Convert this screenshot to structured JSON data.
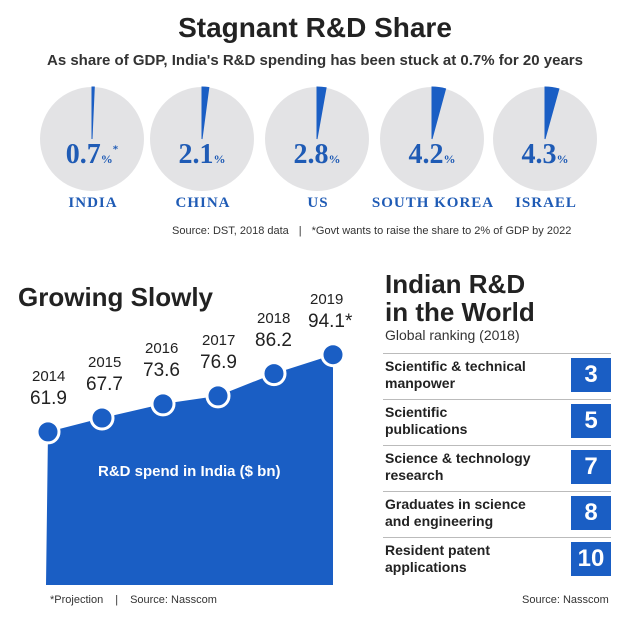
{
  "title": "Stagnant R&D Share",
  "subtitle": "As share of GDP, India's R&D spending has been stuck at 0.7% for 20 years",
  "pies": [
    {
      "country": "INDIA",
      "value": "0.7",
      "share": 0.7,
      "unit": "%",
      "asterisk": "*"
    },
    {
      "country": "CHINA",
      "value": "2.1",
      "share": 2.1,
      "unit": "%",
      "asterisk": ""
    },
    {
      "country": "US",
      "value": "2.8",
      "share": 2.8,
      "unit": "%",
      "asterisk": ""
    },
    {
      "country": "SOUTH KOREA",
      "value": "4.2",
      "share": 4.2,
      "unit": "%",
      "asterisk": ""
    },
    {
      "country": "ISRAEL",
      "value": "4.3",
      "share": 4.3,
      "unit": "%",
      "asterisk": ""
    }
  ],
  "source_top": {
    "left": "Source: DST, 2018 data",
    "separator": "|",
    "right": "*Govt wants to raise the share to 2% of GDP by 2022"
  },
  "growing": {
    "title": "Growing Slowly",
    "area_label": "R&D spend in India ($ bn)",
    "footnote": "*Projection",
    "separator": "|",
    "source": "Source: Nasscom"
  },
  "chart_data": {
    "type": "area",
    "title": "Growing Slowly",
    "ylabel": "R&D spend in India ($ bn)",
    "x": [
      "2014",
      "2015",
      "2016",
      "2017",
      "2018",
      "2019"
    ],
    "values": [
      61.9,
      67.7,
      73.6,
      76.9,
      86.2,
      94.1
    ],
    "value_labels": [
      "61.9",
      "67.7",
      "73.6",
      "76.9",
      "86.2",
      "94.1*"
    ],
    "ylim": [
      0,
      100
    ]
  },
  "ranking": {
    "title_line1": "Indian R&D",
    "title_line2": "in the World",
    "subtitle": "Global ranking (2018)",
    "items": [
      {
        "label_line1": "Scientific & technical",
        "label_line2": "manpower",
        "rank": "3"
      },
      {
        "label_line1": "Scientific",
        "label_line2": "publications",
        "rank": "5"
      },
      {
        "label_line1": "Science & technology",
        "label_line2": "research",
        "rank": "7"
      },
      {
        "label_line1": "Graduates in science",
        "label_line2": "and engineering",
        "rank": "8"
      },
      {
        "label_line1": "Resident patent",
        "label_line2": "applications",
        "rank": "10"
      }
    ],
    "source": "Source: Nasscom"
  },
  "colors": {
    "accent": "#1a5ec4",
    "pie_bg": "#e3e3e5",
    "text_blue": "#1f5bb5"
  }
}
